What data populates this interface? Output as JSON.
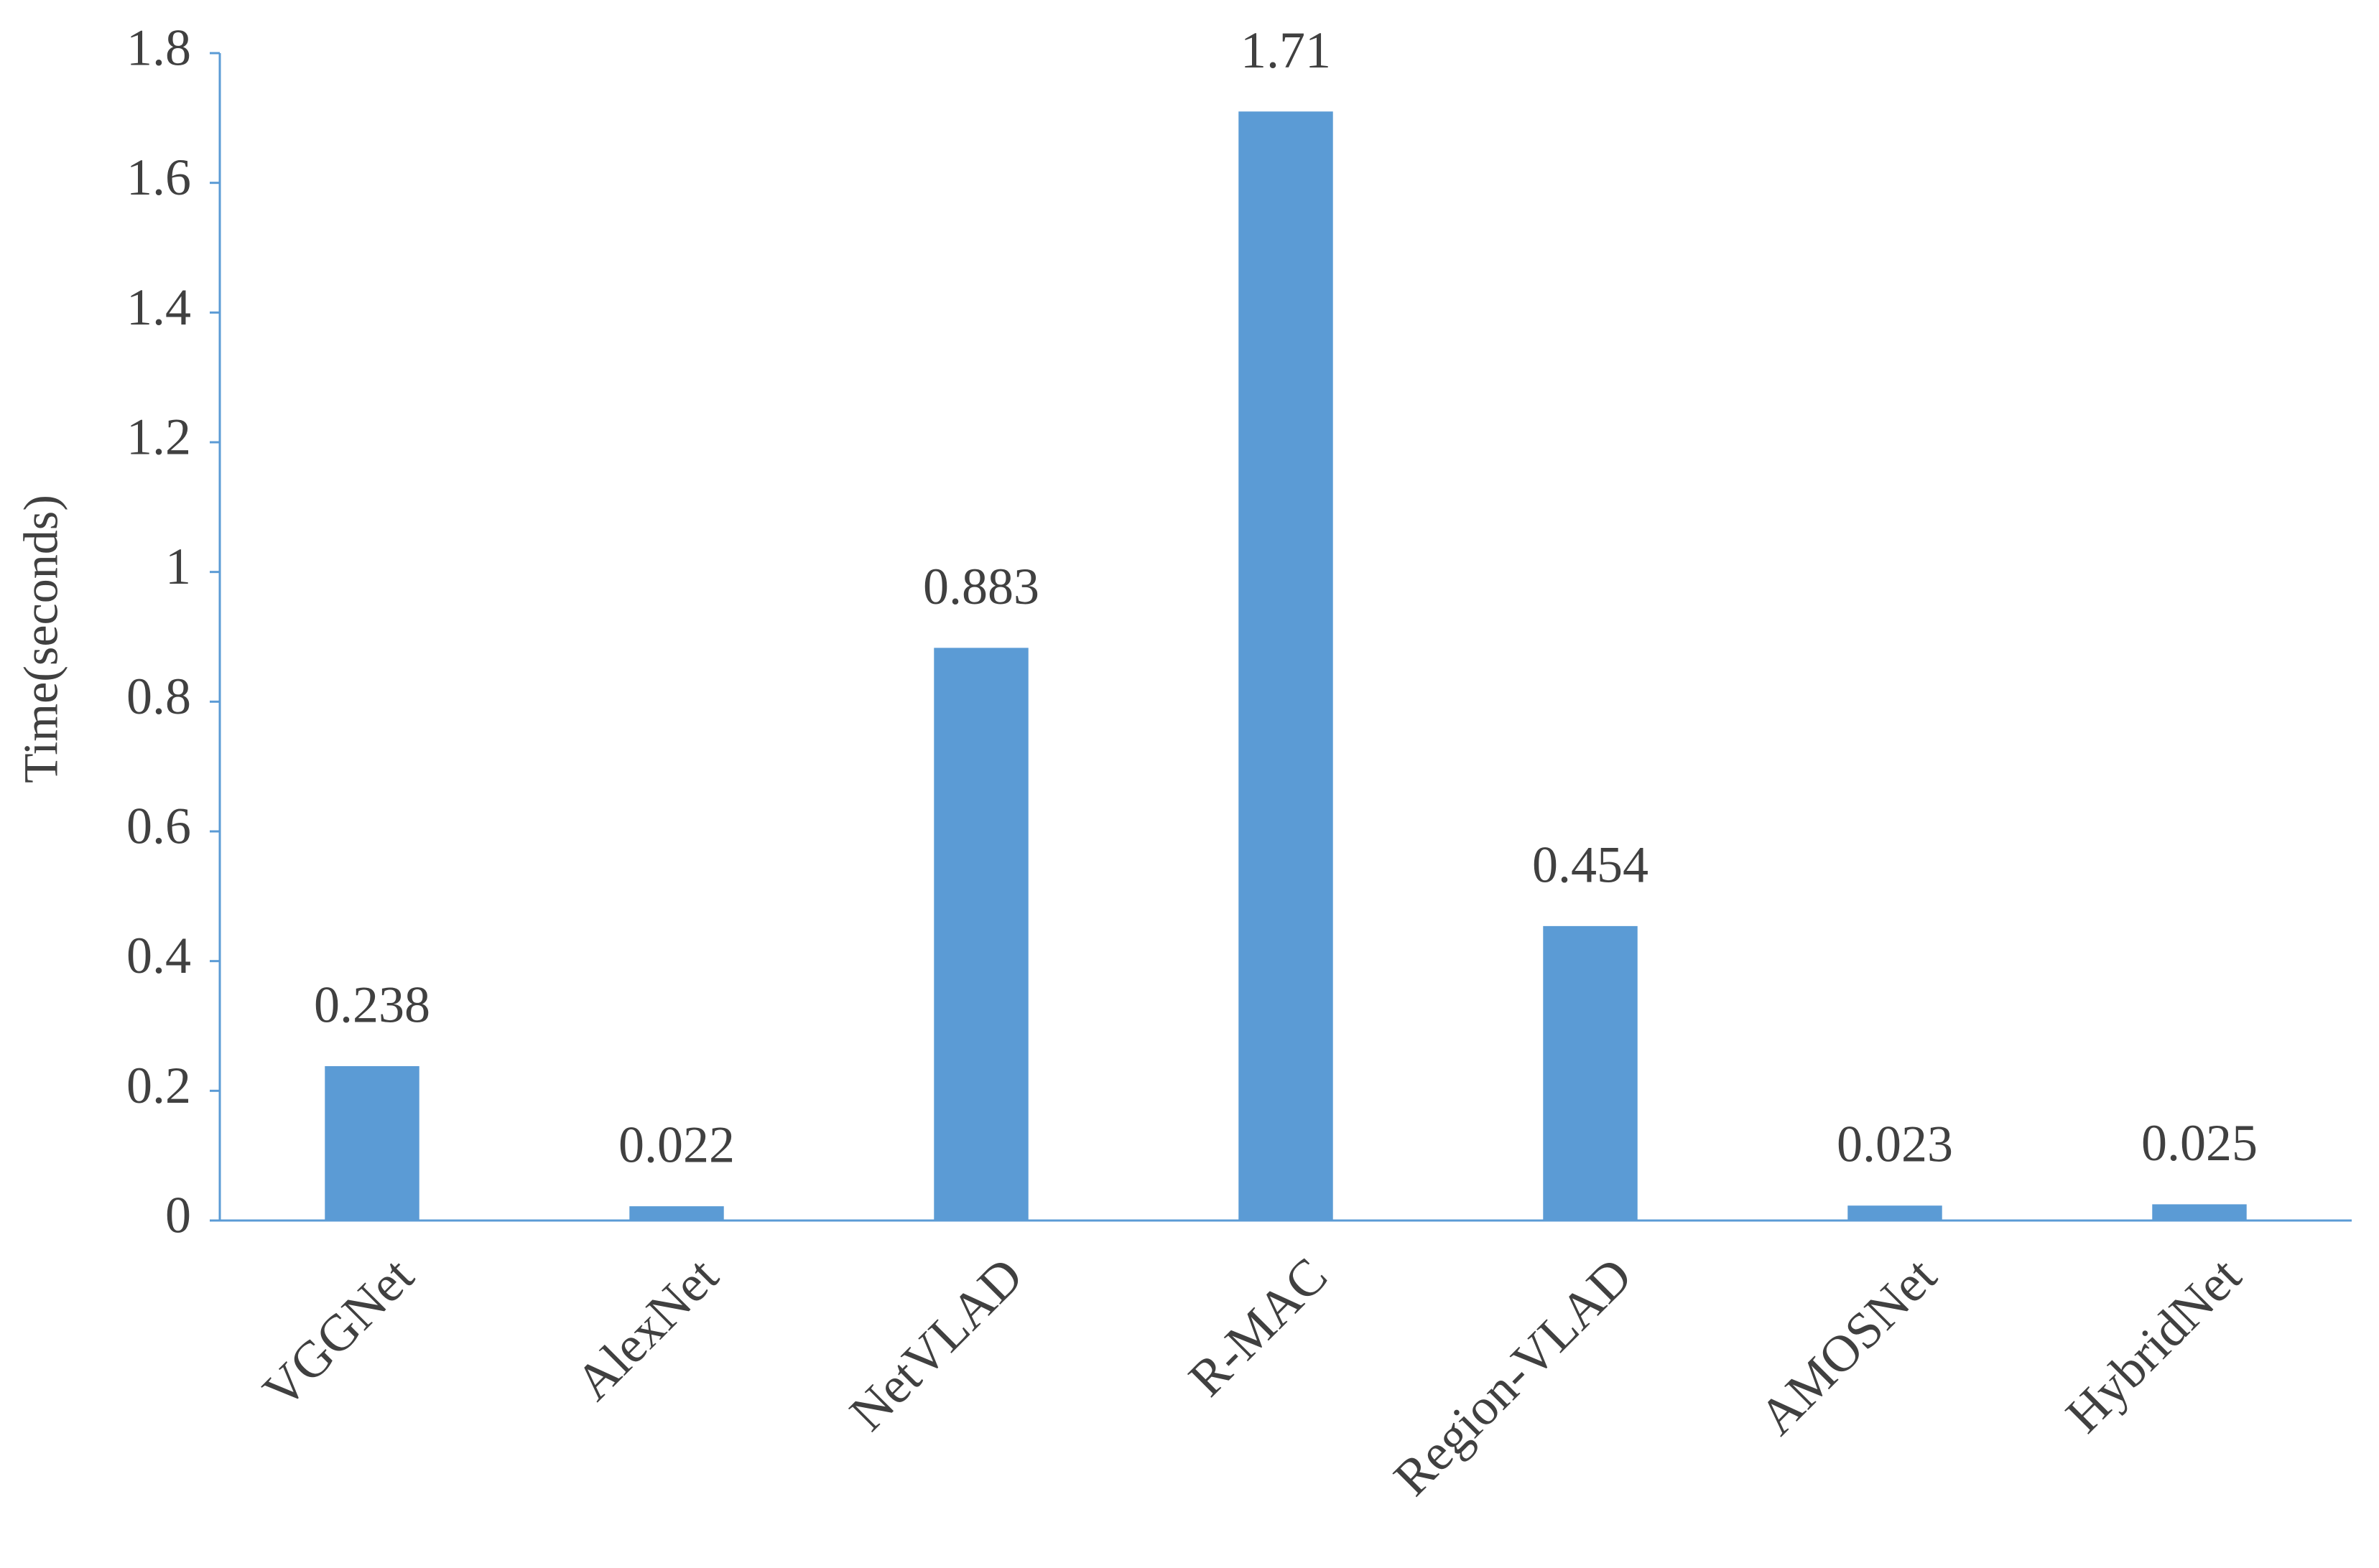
{
  "chart_data": {
    "type": "bar",
    "ylabel": "Time(seconds)",
    "categories": [
      "VGGNet",
      "AlexNet",
      "NetVLAD",
      "R-MAC",
      "Region-VLAD",
      "AMOSNet",
      "HybridNet"
    ],
    "values": [
      0.238,
      0.022,
      0.883,
      1.71,
      0.454,
      0.023,
      0.025
    ],
    "color": "#5b9bd5",
    "ylim": [
      0,
      1.8
    ],
    "yticks": [
      0,
      0.2,
      0.4,
      0.6,
      0.8,
      1,
      1.2,
      1.4,
      1.6,
      1.8
    ]
  }
}
